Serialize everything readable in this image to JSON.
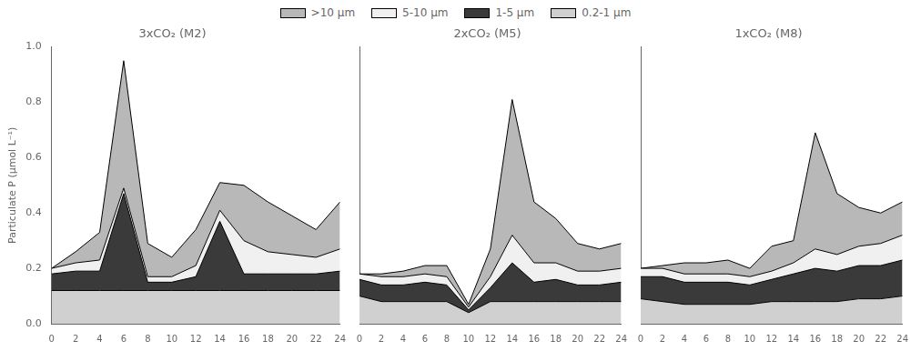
{
  "chart_data": [
    {
      "type": "area",
      "stacked": true,
      "title": "3xCO₂ (M2)",
      "ylabel": "Particulate P (µmol L⁻¹)",
      "x": [
        0,
        2,
        4,
        6,
        8,
        10,
        12,
        14,
        16,
        18,
        20,
        22,
        24
      ],
      "xlim": [
        0,
        24
      ],
      "xticks": [
        0,
        2,
        4,
        6,
        8,
        10,
        12,
        14,
        16,
        18,
        20,
        22,
        24
      ],
      "ylim": [
        0.0,
        1.0
      ],
      "yticks": [
        {
          "value": 0.0,
          "label": "0.0"
        },
        0.2,
        0.4,
        0.6,
        0.8,
        {
          "value": 1.0,
          "label": "1.0"
        }
      ],
      "grid": false,
      "legend": "top",
      "series": [
        {
          "name": "0.2-1 µm",
          "color": "#d0d0d0",
          "values": [
            0.12,
            0.12,
            0.12,
            0.12,
            0.12,
            0.12,
            0.12,
            0.12,
            0.12,
            0.12,
            0.12,
            0.12,
            0.12
          ]
        },
        {
          "name": "1-5 µm",
          "color": "#3a3a3a",
          "values": [
            0.06,
            0.07,
            0.07,
            0.35,
            0.03,
            0.03,
            0.05,
            0.25,
            0.06,
            0.06,
            0.06,
            0.06,
            0.07
          ]
        },
        {
          "name": "5-10 µm",
          "color": "#f0f0f0",
          "values": [
            0.02,
            0.03,
            0.04,
            0.02,
            0.02,
            0.02,
            0.04,
            0.04,
            0.12,
            0.08,
            0.07,
            0.06,
            0.08
          ]
        },
        {
          "name": ">10 µm",
          "color": "#b8b8b8",
          "values": [
            0.0,
            0.04,
            0.1,
            0.46,
            0.12,
            0.07,
            0.13,
            0.1,
            0.2,
            0.18,
            0.14,
            0.1,
            0.17
          ]
        }
      ]
    },
    {
      "type": "area",
      "stacked": true,
      "title": "2xCO₂ (M5)",
      "x": [
        0,
        2,
        4,
        6,
        8,
        10,
        12,
        14,
        16,
        18,
        20,
        22,
        24
      ],
      "xlim": [
        0,
        24
      ],
      "xticks": [
        0,
        2,
        4,
        6,
        8,
        10,
        12,
        14,
        16,
        18,
        20,
        22,
        24
      ],
      "ylim": [
        0.0,
        1.0
      ],
      "yticks": [
        {
          "value": 0.0,
          "label": "0.0"
        },
        0.2,
        0.4,
        0.6,
        0.8,
        {
          "value": 1.0,
          "label": "1.0"
        }
      ],
      "grid": false,
      "tick_labels": "x",
      "series": [
        {
          "name": "0.2-1 µm",
          "color": "#d0d0d0",
          "values": [
            0.1,
            0.08,
            0.08,
            0.08,
            0.08,
            0.04,
            0.08,
            0.08,
            0.08,
            0.08,
            0.08,
            0.08,
            0.08
          ]
        },
        {
          "name": "1-5 µm",
          "color": "#3a3a3a",
          "values": [
            0.06,
            0.06,
            0.06,
            0.07,
            0.06,
            0.01,
            0.05,
            0.14,
            0.07,
            0.08,
            0.06,
            0.06,
            0.07
          ]
        },
        {
          "name": "5-10 µm",
          "color": "#f0f0f0",
          "values": [
            0.02,
            0.03,
            0.03,
            0.03,
            0.03,
            0.01,
            0.04,
            0.1,
            0.07,
            0.06,
            0.05,
            0.05,
            0.05
          ]
        },
        {
          "name": ">10 µm",
          "color": "#b8b8b8",
          "values": [
            0.0,
            0.01,
            0.02,
            0.03,
            0.04,
            0.01,
            0.1,
            0.49,
            0.22,
            0.16,
            0.1,
            0.08,
            0.09
          ]
        }
      ]
    },
    {
      "type": "area",
      "stacked": true,
      "title": "1xCO₂ (M8)",
      "x": [
        0,
        2,
        4,
        6,
        8,
        10,
        12,
        14,
        16,
        18,
        20,
        22,
        24
      ],
      "xlim": [
        0,
        24
      ],
      "xticks": [
        0,
        2,
        4,
        6,
        8,
        10,
        12,
        14,
        16,
        18,
        20,
        22,
        24
      ],
      "ylim": [
        0.0,
        1.0
      ],
      "yticks": [
        {
          "value": 0.0,
          "label": "0.0"
        },
        0.2,
        0.4,
        0.6,
        0.8,
        {
          "value": 1.0,
          "label": "1.0"
        }
      ],
      "grid": false,
      "tick_labels": "x",
      "series": [
        {
          "name": "0.2-1 µm",
          "color": "#d0d0d0",
          "values": [
            0.09,
            0.08,
            0.07,
            0.07,
            0.07,
            0.07,
            0.08,
            0.08,
            0.08,
            0.08,
            0.09,
            0.09,
            0.1
          ]
        },
        {
          "name": "1-5 µm",
          "color": "#3a3a3a",
          "values": [
            0.08,
            0.09,
            0.08,
            0.08,
            0.08,
            0.07,
            0.08,
            0.1,
            0.12,
            0.11,
            0.12,
            0.12,
            0.13
          ]
        },
        {
          "name": "5-10 µm",
          "color": "#f0f0f0",
          "values": [
            0.03,
            0.03,
            0.03,
            0.03,
            0.03,
            0.03,
            0.03,
            0.04,
            0.07,
            0.06,
            0.07,
            0.08,
            0.09
          ]
        },
        {
          "name": ">10 µm",
          "color": "#b8b8b8",
          "values": [
            0.0,
            0.01,
            0.04,
            0.04,
            0.05,
            0.03,
            0.09,
            0.08,
            0.42,
            0.22,
            0.14,
            0.11,
            0.12
          ]
        }
      ]
    }
  ]
}
